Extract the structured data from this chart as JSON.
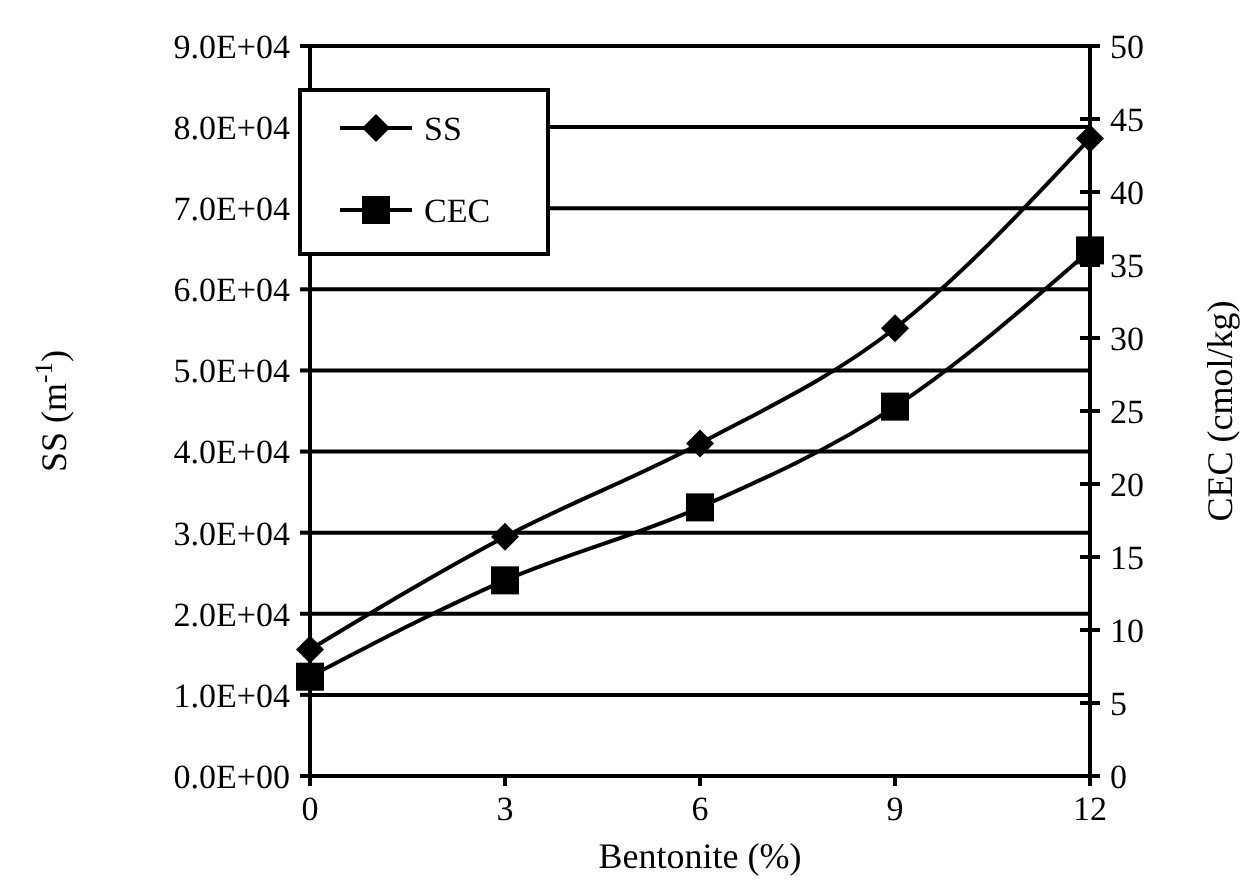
{
  "chart_data": {
    "type": "line",
    "xlabel": "Bentonite (%)",
    "ylabel": "SS (m$^{-1}$)",
    "y2label": "CEC (cmol/kg)",
    "x": [
      0,
      3,
      6,
      9,
      12
    ],
    "xlim": [
      0,
      12
    ],
    "xticks": [
      0,
      3,
      6,
      9,
      12
    ],
    "ylim": [
      0,
      90000
    ],
    "yticks": [
      {
        "value": 0,
        "label": "0.0E+00"
      },
      {
        "value": 10000,
        "label": "1.0E+04"
      },
      {
        "value": 20000,
        "label": "2.0E+04"
      },
      {
        "value": 30000,
        "label": "3.0E+04"
      },
      {
        "value": 40000,
        "label": "4.0E+04"
      },
      {
        "value": 50000,
        "label": "5.0E+04"
      },
      {
        "value": 60000,
        "label": "6.0E+04"
      },
      {
        "value": 70000,
        "label": "7.0E+04"
      },
      {
        "value": 80000,
        "label": "8.0E+04"
      },
      {
        "value": 90000,
        "label": "9.0E+04"
      }
    ],
    "y2lim": [
      0,
      50
    ],
    "y2ticks": [
      0,
      5,
      10,
      15,
      20,
      25,
      30,
      35,
      40,
      45,
      50
    ],
    "grid": "y",
    "legend": "top left",
    "series": [
      {
        "name": "SS",
        "color": "#000000",
        "marker": "diamond",
        "values": [
          15600,
          29500,
          41000,
          55200,
          78600
        ]
      },
      {
        "name": "CEC",
        "color": "#000000",
        "marker": "square",
        "axis": "y2",
        "values": [
          6.8,
          13.4,
          18.4,
          25.3,
          36.0
        ]
      }
    ]
  }
}
